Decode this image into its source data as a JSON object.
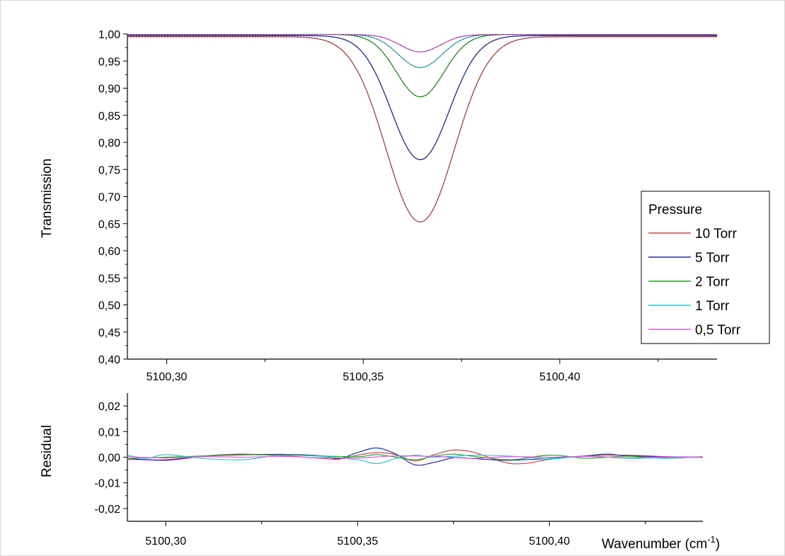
{
  "chart_data": [
    {
      "type": "line",
      "ylabel": "Transmission",
      "xlim": [
        5100.29,
        5100.44
      ],
      "ylim": [
        0.4,
        1.0
      ],
      "x_ticks": [
        "5100,30",
        "5100,35",
        "5100,40"
      ],
      "x_tick_values": [
        5100.3,
        5100.35,
        5100.4
      ],
      "y_ticks": [
        "0,40",
        "0,45",
        "0,50",
        "0,55",
        "0,60",
        "0,65",
        "0,70",
        "0,75",
        "0,80",
        "0,85",
        "0,90",
        "0,95",
        "1,00"
      ],
      "y_tick_values": [
        0.4,
        0.45,
        0.5,
        0.55,
        0.6,
        0.65,
        0.7,
        0.75,
        0.8,
        0.85,
        0.9,
        0.95,
        1.0
      ],
      "grid": false,
      "legend": {
        "title": "Pressure",
        "placement": "right",
        "entries": [
          "10 Torr",
          "5 Torr",
          "2 Torr",
          "1 Torr",
          "0,5 Torr"
        ]
      },
      "line_center": 5100.3645,
      "series": [
        {
          "name": "10 Torr",
          "color": "#c0504d",
          "baseline": 0.995,
          "minimum": 0.653,
          "halfwidth_cm": 0.0123
        },
        {
          "name": "5 Torr",
          "color": "#2b2b9c",
          "baseline": 0.997,
          "minimum": 0.768,
          "halfwidth_cm": 0.0104
        },
        {
          "name": "2 Torr",
          "color": "#2ca02c",
          "baseline": 0.999,
          "minimum": 0.884,
          "halfwidth_cm": 0.0085
        },
        {
          "name": "1 Torr",
          "color": "#36c5c5",
          "baseline": 0.999,
          "minimum": 0.938,
          "halfwidth_cm": 0.0078
        },
        {
          "name": "0,5 Torr",
          "color": "#d85fd8",
          "baseline": 0.999,
          "minimum": 0.967,
          "halfwidth_cm": 0.0072
        }
      ]
    },
    {
      "type": "line",
      "xlabel": "Wavenumber (cm",
      "xlabel_superscript": "-1",
      "xlabel_close": ")",
      "ylabel": "Residual",
      "xlim": [
        5100.29,
        5100.44
      ],
      "ylim": [
        -0.025,
        0.025
      ],
      "x_ticks": [
        "5100,30",
        "5100,35",
        "5100,40"
      ],
      "x_tick_values": [
        5100.3,
        5100.35,
        5100.4
      ],
      "y_ticks": [
        "-0,02",
        "-0,01",
        "0,00",
        "0,01",
        "0,02"
      ],
      "y_tick_values": [
        -0.02,
        -0.01,
        0.0,
        0.01,
        0.02
      ],
      "grid": false,
      "series": [
        {
          "name": "10 Torr",
          "color": "#c0504d",
          "x": [
            5100.29,
            5100.3,
            5100.31,
            5100.32,
            5100.33,
            5100.34,
            5100.345,
            5100.35,
            5100.355,
            5100.36,
            5100.365,
            5100.37,
            5100.375,
            5100.38,
            5100.385,
            5100.39,
            5100.395,
            5100.4,
            5100.41,
            5100.42,
            5100.43,
            5100.44
          ],
          "y": [
            -0.0008,
            -0.001,
            0.0005,
            0.0012,
            0.0006,
            -0.0004,
            -0.0008,
            0.0008,
            0.0018,
            0.001,
            -0.0015,
            0.001,
            0.0028,
            0.002,
            -0.0005,
            -0.0025,
            -0.0022,
            -0.0008,
            0.0005,
            0.0008,
            0.0002,
            -0.0001
          ]
        },
        {
          "name": "5 Torr",
          "color": "#2b2b9c",
          "x": [
            5100.29,
            5100.3,
            5100.31,
            5100.32,
            5100.33,
            5100.34,
            5100.345,
            5100.35,
            5100.355,
            5100.36,
            5100.365,
            5100.37,
            5100.375,
            5100.38,
            5100.385,
            5100.39,
            5100.4,
            5100.41,
            5100.415,
            5100.42,
            5100.43,
            5100.44
          ],
          "y": [
            -0.0005,
            -0.0012,
            0.0004,
            0.0009,
            0.0011,
            0.0006,
            -0.0006,
            0.0018,
            0.0036,
            0.0012,
            -0.003,
            -0.002,
            -0.0002,
            -0.0005,
            -0.001,
            -0.0012,
            -0.0005,
            0.0006,
            0.0012,
            0.0006,
            0.0002,
            0.0
          ]
        },
        {
          "name": "2 Torr",
          "color": "#2ca02c",
          "x": [
            5100.29,
            5100.3,
            5100.31,
            5100.32,
            5100.33,
            5100.34,
            5100.35,
            5100.355,
            5100.36,
            5100.365,
            5100.37,
            5100.375,
            5100.38,
            5100.39,
            5100.4,
            5100.41,
            5100.42,
            5100.43,
            5100.44
          ],
          "y": [
            -0.0005,
            0.0,
            0.0005,
            0.001,
            0.0008,
            0.0005,
            0.0002,
            0.001,
            0.0,
            -0.001,
            0.0004,
            0.0012,
            0.0004,
            -0.001,
            0.0008,
            -0.0004,
            0.0004,
            -0.0004,
            0.0002
          ]
        },
        {
          "name": "1 Torr",
          "color": "#36c5c5",
          "x": [
            5100.29,
            5100.295,
            5100.3,
            5100.31,
            5100.32,
            5100.33,
            5100.34,
            5100.35,
            5100.355,
            5100.36,
            5100.365,
            5100.37,
            5100.38,
            5100.39,
            5100.4,
            5100.41,
            5100.42,
            5100.43,
            5100.44
          ],
          "y": [
            0.0008,
            -0.0005,
            0.001,
            -0.0005,
            -0.001,
            0.0008,
            0.0004,
            -0.001,
            -0.0025,
            -0.0005,
            0.0008,
            0.0,
            0.0008,
            0.0004,
            -0.0006,
            0.0004,
            -0.0004,
            -0.0002,
            0.0
          ]
        },
        {
          "name": "0,5 Torr",
          "color": "#d85fd8",
          "x": [
            5100.29,
            5100.3,
            5100.31,
            5100.32,
            5100.33,
            5100.34,
            5100.35,
            5100.36,
            5100.37,
            5100.38,
            5100.39,
            5100.4,
            5100.41,
            5100.42,
            5100.43,
            5100.44
          ],
          "y": [
            0.0002,
            -0.0003,
            0.0002,
            0.0,
            0.0003,
            -0.0002,
            -0.0003,
            0.0005,
            0.0003,
            -0.0004,
            0.0002,
            0.0,
            0.0003,
            -0.0002,
            0.0001,
            0.0
          ]
        }
      ]
    }
  ]
}
